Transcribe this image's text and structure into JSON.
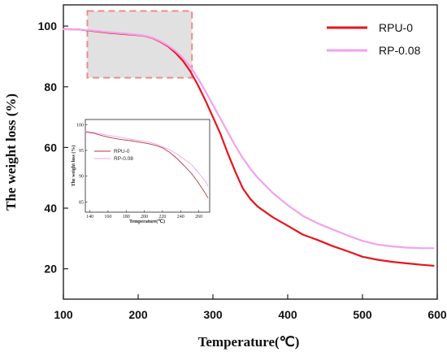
{
  "chart_data": [
    {
      "type": "line",
      "title": "",
      "xlabel": "Temperature(℃)",
      "ylabel": "The weight loss (%)",
      "xlim": [
        100,
        600
      ],
      "ylim": [
        10,
        107
      ],
      "xticks": [
        100,
        200,
        300,
        400,
        500,
        600
      ],
      "yticks": [
        20,
        40,
        60,
        80,
        100
      ],
      "grid": false,
      "legend_position": "top-right",
      "highlight_region": {
        "x": [
          132,
          272
        ],
        "y": [
          83,
          105
        ]
      },
      "series": [
        {
          "name": "RPU-0",
          "color": "#e8141c",
          "x": [
            100,
            120,
            140,
            160,
            180,
            200,
            210,
            220,
            230,
            240,
            250,
            260,
            270,
            280,
            290,
            300,
            310,
            320,
            330,
            340,
            350,
            360,
            380,
            400,
            420,
            440,
            460,
            480,
            500,
            520,
            540,
            560,
            580,
            595
          ],
          "y": [
            99,
            98.9,
            98.4,
            97.8,
            97.4,
            97,
            96.7,
            96,
            94.8,
            93.3,
            91.2,
            88.5,
            85,
            80.5,
            75.5,
            70,
            64.5,
            58,
            52,
            46.5,
            43,
            40.5,
            37,
            34.2,
            31.3,
            29.5,
            27.5,
            25.8,
            24,
            23,
            22.3,
            21.8,
            21.3,
            21
          ]
        },
        {
          "name": "RP-0.08",
          "color": "#f2a2ee",
          "x": [
            100,
            120,
            140,
            160,
            180,
            200,
            210,
            220,
            230,
            240,
            250,
            260,
            270,
            280,
            290,
            300,
            310,
            320,
            330,
            340,
            350,
            360,
            380,
            400,
            420,
            440,
            460,
            480,
            500,
            520,
            540,
            560,
            580,
            595
          ],
          "y": [
            99,
            98.9,
            98.5,
            98,
            97.6,
            97.1,
            96.8,
            96.1,
            95,
            93.6,
            91.8,
            89.5,
            86.5,
            82.8,
            78.5,
            74,
            69.5,
            65,
            60.5,
            56.5,
            53,
            50,
            45,
            41,
            37.5,
            35,
            33,
            31,
            29.2,
            28,
            27.4,
            27,
            26.8,
            26.8
          ]
        }
      ]
    },
    {
      "type": "line",
      "title": "",
      "xlabel": "Temperature(℃)",
      "ylabel": "The weight loss (%)",
      "xlim": [
        135,
        272
      ],
      "ylim": [
        83,
        101
      ],
      "xticks": [
        140,
        160,
        180,
        200,
        220,
        240,
        260
      ],
      "yticks": [
        85,
        90,
        95,
        100
      ],
      "grid": false,
      "legend_position": "upper-left",
      "series": [
        {
          "name": "RPU-0",
          "color": "#b03a3a",
          "x": [
            135,
            145,
            155,
            165,
            175,
            185,
            195,
            205,
            212,
            220,
            228,
            236,
            244,
            252,
            260,
            266,
            270
          ],
          "y": [
            98.6,
            98.3,
            97.8,
            97.4,
            97.1,
            96.9,
            96.6,
            96.3,
            96,
            95.5,
            94.6,
            93.4,
            92,
            90.5,
            88.6,
            87,
            85.8
          ]
        },
        {
          "name": "RP-0.08",
          "color": "#f2a2ee",
          "x": [
            135,
            145,
            155,
            165,
            175,
            185,
            195,
            205,
            212,
            220,
            228,
            236,
            244,
            252,
            260,
            266,
            270
          ],
          "y": [
            98.7,
            98.5,
            98.1,
            97.8,
            97.5,
            97.2,
            96.9,
            96.6,
            96.3,
            95.7,
            95.1,
            94.3,
            93.3,
            92.2,
            90.6,
            89.3,
            88.2
          ]
        }
      ]
    }
  ]
}
